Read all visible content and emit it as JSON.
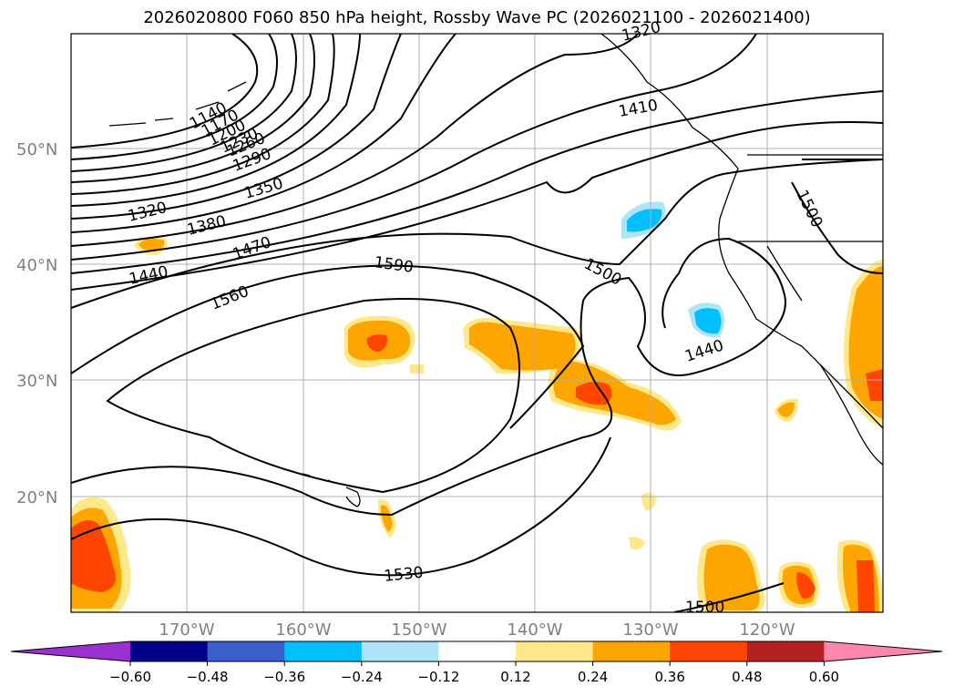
{
  "title": "2026020800 F060 850 hPa height, Rossby Wave PC (2026021100 - 2026021400)",
  "lat_labels": [
    "50°N",
    "40°N",
    "30°N",
    "20°N"
  ],
  "lon_labels": [
    "170°W",
    "160°W",
    "150°W",
    "140°W",
    "130°W",
    "120°W"
  ],
  "contour_labels": [
    "1140",
    "1170",
    "1200",
    "1230",
    "1260",
    "1290",
    "1320",
    "1350",
    "1380",
    "1440",
    "1470",
    "1560",
    "1590",
    "1500",
    "1440",
    "1500",
    "1530",
    "1500",
    "1320",
    "1410"
  ],
  "colorbar": {
    "ticks": [
      "−0.60",
      "−0.48",
      "−0.36",
      "−0.24",
      "−0.12",
      "0.12",
      "0.24",
      "0.36",
      "0.48",
      "0.60"
    ],
    "colors": [
      "#9b30d0",
      "#00008b",
      "#3a5fcd",
      "#00bfff",
      "#aee3fa",
      "#ffffff",
      "#ffe88a",
      "#ffa500",
      "#ff4500",
      "#b22222",
      "#ff86ad"
    ]
  }
}
